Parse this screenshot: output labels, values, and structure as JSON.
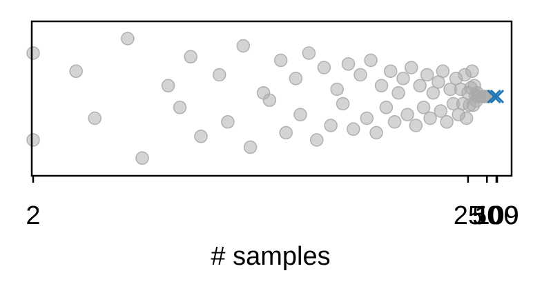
{
  "chart_data": {
    "type": "scatter",
    "title": "",
    "xlabel": "# samples",
    "ylabel": "",
    "x_scale": "reciprocal",
    "xlim": [
      2,
      1750
    ],
    "grid": false,
    "legend": "none",
    "xticks": [
      {
        "value": 2,
        "label": "2"
      },
      {
        "value": 25,
        "label": "25"
      },
      {
        "value": 50,
        "label": "50"
      },
      {
        "value": 100,
        "label": "100"
      },
      {
        "value": 109,
        "label": "109"
      }
    ],
    "series": [
      {
        "marker": "circle",
        "color": "#aaaaaa",
        "opacity": 0.5,
        "points": [
          {
            "x": 2,
            "y": 0.6
          },
          {
            "x": 2,
            "y": -0.6
          },
          {
            "x": 2.2,
            "y": 0.35
          },
          {
            "x": 2.3,
            "y": -0.3
          },
          {
            "x": 2.5,
            "y": 0.8
          },
          {
            "x": 2.6,
            "y": -0.85
          },
          {
            "x": 2.8,
            "y": 0.15
          },
          {
            "x": 2.9,
            "y": -0.15
          },
          {
            "x": 3,
            "y": 0.55
          },
          {
            "x": 3.1,
            "y": -0.55
          },
          {
            "x": 3.3,
            "y": 0.3
          },
          {
            "x": 3.4,
            "y": -0.35
          },
          {
            "x": 3.6,
            "y": 0.7
          },
          {
            "x": 3.7,
            "y": -0.7
          },
          {
            "x": 3.9,
            "y": 0.05
          },
          {
            "x": 4,
            "y": -0.05
          },
          {
            "x": 4.2,
            "y": 0.5
          },
          {
            "x": 4.3,
            "y": -0.5
          },
          {
            "x": 4.5,
            "y": 0.25
          },
          {
            "x": 4.6,
            "y": -0.25
          },
          {
            "x": 4.8,
            "y": 0.6
          },
          {
            "x": 5,
            "y": -0.6
          },
          {
            "x": 5.2,
            "y": 0.4
          },
          {
            "x": 5.4,
            "y": -0.4
          },
          {
            "x": 5.6,
            "y": 0.1
          },
          {
            "x": 5.8,
            "y": -0.1
          },
          {
            "x": 6,
            "y": 0.45
          },
          {
            "x": 6.2,
            "y": -0.45
          },
          {
            "x": 6.5,
            "y": 0.3
          },
          {
            "x": 6.8,
            "y": -0.3
          },
          {
            "x": 7,
            "y": 0.5
          },
          {
            "x": 7.3,
            "y": -0.5
          },
          {
            "x": 7.6,
            "y": 0.15
          },
          {
            "x": 7.9,
            "y": -0.15
          },
          {
            "x": 8.2,
            "y": 0.35
          },
          {
            "x": 8.5,
            "y": -0.35
          },
          {
            "x": 8.8,
            "y": 0.05
          },
          {
            "x": 9.2,
            "y": 0.25
          },
          {
            "x": 9.6,
            "y": -0.25
          },
          {
            "x": 10,
            "y": 0.4
          },
          {
            "x": 10.5,
            "y": -0.4
          },
          {
            "x": 11,
            "y": 0.15
          },
          {
            "x": 11.5,
            "y": -0.15
          },
          {
            "x": 12,
            "y": 0.3
          },
          {
            "x": 12.5,
            "y": -0.3
          },
          {
            "x": 13,
            "y": 0.05
          },
          {
            "x": 14,
            "y": 0.2
          },
          {
            "x": 14.5,
            "y": -0.2
          },
          {
            "x": 15,
            "y": 0.35
          },
          {
            "x": 16,
            "y": -0.35
          },
          {
            "x": 17,
            "y": 0.1
          },
          {
            "x": 18,
            "y": -0.1
          },
          {
            "x": 19,
            "y": 0.25
          },
          {
            "x": 20,
            "y": -0.25
          },
          {
            "x": 21,
            "y": 0.1
          },
          {
            "x": 22,
            "y": -0.1
          },
          {
            "x": 23,
            "y": 0.3
          },
          {
            "x": 24,
            "y": -0.3
          },
          {
            "x": 25,
            "y": 0.05
          },
          {
            "x": 26,
            "y": -0.12
          },
          {
            "x": 27,
            "y": 0.12
          },
          {
            "x": 28,
            "y": 0.35
          },
          {
            "x": 29,
            "y": -0.12
          },
          {
            "x": 30,
            "y": 0.15
          },
          {
            "x": 31,
            "y": 0.02
          },
          {
            "x": 32,
            "y": -0.06
          },
          {
            "x": 33,
            "y": 0.05
          },
          {
            "x": 34,
            "y": 0.0
          },
          {
            "x": 36,
            "y": 0.0
          },
          {
            "x": 42,
            "y": 0.0
          },
          {
            "x": 44,
            "y": 0.0
          },
          {
            "x": 51,
            "y": 0.0
          },
          {
            "x": 57,
            "y": 0.0
          }
        ]
      },
      {
        "marker": "x",
        "color": "#1f77b4",
        "opacity": 1,
        "points": [
          {
            "x": 80,
            "y": 0.0
          },
          {
            "x": 109,
            "y": 0.0
          }
        ]
      }
    ]
  }
}
